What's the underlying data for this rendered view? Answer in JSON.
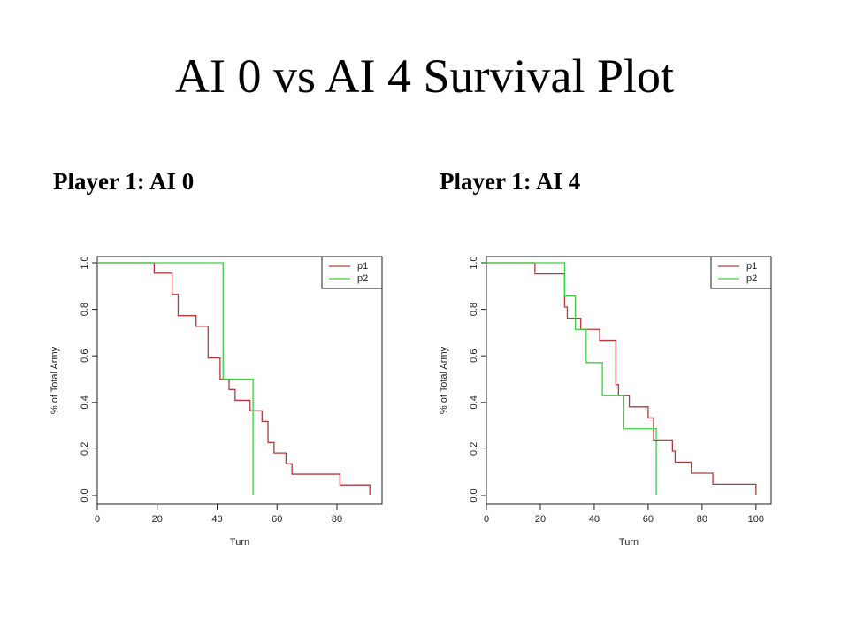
{
  "title": "AI 0 vs AI 4 Survival Plot",
  "colors": {
    "p1": "#b5393b",
    "p2": "#3bd13b",
    "axis": "#222222"
  },
  "chart_data": [
    {
      "type": "line",
      "panel_title": "Player 1: AI 0",
      "xlabel": "Turn",
      "ylabel": "% of Total Army",
      "xlim": [
        0,
        93
      ],
      "ylim": [
        0,
        1.0
      ],
      "xticks": [
        "0",
        "20",
        "40",
        "60",
        "80"
      ],
      "yticks": [
        "0.0",
        "0.2",
        "0.4",
        "0.6",
        "0.8",
        "1.0"
      ],
      "legend": {
        "position": "top-right",
        "entries": [
          "p1",
          "p2"
        ]
      },
      "series": [
        {
          "name": "p1",
          "step": true,
          "x": [
            0,
            19,
            25,
            27,
            33,
            37,
            41,
            44,
            46,
            51,
            55,
            57,
            59,
            63,
            65,
            81,
            91,
            91
          ],
          "y": [
            1.0,
            0.955,
            0.864,
            0.773,
            0.727,
            0.591,
            0.5,
            0.455,
            0.409,
            0.364,
            0.318,
            0.227,
            0.182,
            0.136,
            0.091,
            0.045,
            0.045,
            0.0
          ]
        },
        {
          "name": "p2",
          "step": true,
          "x": [
            0,
            42,
            52,
            52
          ],
          "y": [
            1.0,
            0.5,
            0.5,
            0.0
          ]
        }
      ]
    },
    {
      "type": "line",
      "panel_title": "Player 1: AI 4",
      "xlabel": "Turn",
      "ylabel": "% of Total Army",
      "xlim": [
        0,
        103
      ],
      "ylim": [
        0,
        1.0
      ],
      "xticks": [
        "0",
        "20",
        "40",
        "60",
        "80",
        "100"
      ],
      "yticks": [
        "0.0",
        "0.2",
        "0.4",
        "0.6",
        "0.8",
        "1.0"
      ],
      "legend": {
        "position": "top-right",
        "entries": [
          "p1",
          "p2"
        ]
      },
      "series": [
        {
          "name": "p1",
          "step": true,
          "x": [
            0,
            18,
            29,
            30,
            35,
            38,
            42,
            48,
            49,
            53,
            60,
            62,
            66,
            69,
            70,
            76,
            84,
            100,
            100
          ],
          "y": [
            1.0,
            0.952,
            0.81,
            0.762,
            0.714,
            0.714,
            0.667,
            0.476,
            0.429,
            0.381,
            0.333,
            0.238,
            0.238,
            0.19,
            0.143,
            0.095,
            0.048,
            0.048,
            0.0
          ]
        },
        {
          "name": "p2",
          "step": true,
          "x": [
            0,
            29,
            33,
            37,
            43,
            51,
            63,
            63
          ],
          "y": [
            1.0,
            0.857,
            0.714,
            0.571,
            0.429,
            0.286,
            0.286,
            0.0
          ]
        }
      ]
    }
  ]
}
